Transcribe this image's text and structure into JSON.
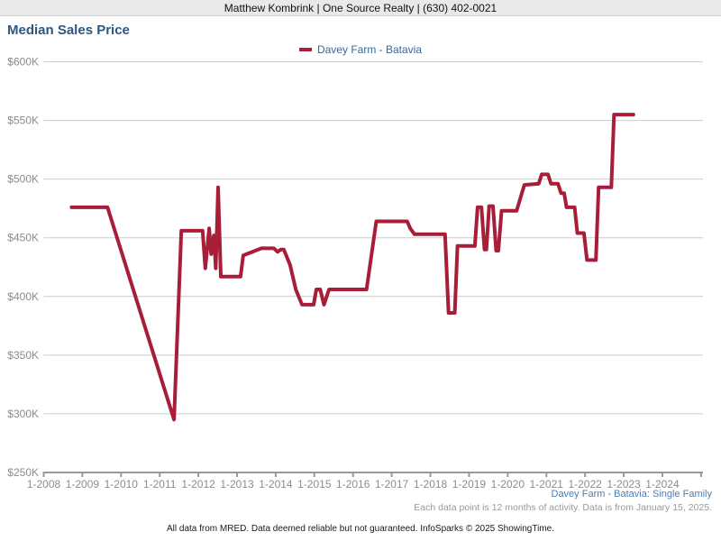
{
  "header": {
    "agent_info": "Matthew Kombrink | One Source Realty | (630) 402-0021"
  },
  "title": "Median Sales Price",
  "legend": {
    "label": "Davey Farm - Batavia"
  },
  "annotations": {
    "series_type": "Davey Farm - Batavia: Single Family",
    "data_note": "Each data point is 12 months of activity. Data is from January 15, 2025."
  },
  "footer": {
    "disclaimer": "All data from MRED. Data deemed reliable but not guaranteed. InfoSparks © 2025 ShowingTime."
  },
  "colors": {
    "accent": "#A81D37",
    "title_blue": "#2A5783",
    "legend_blue": "#35689C",
    "link_blue": "#4E7FB1",
    "grid": "#CCCCCC",
    "axis": "#999999",
    "tick_text": "#8C8C8C",
    "note_gray": "#999999",
    "header_bg": "#E9E9E9",
    "header_border": "#D4D4D4",
    "footer_text": "#1A1A1A"
  },
  "chart_data": {
    "type": "line",
    "title": "Median Sales Price",
    "xlabel": "",
    "ylabel": "",
    "units": "USD thousands",
    "grid": true,
    "legend_position": "top-center",
    "xlim": [
      2008,
      2025.05
    ],
    "ylim": [
      250,
      600
    ],
    "y_ticks": [
      {
        "value": 250,
        "label": "$250K"
      },
      {
        "value": 300,
        "label": "$300K"
      },
      {
        "value": 350,
        "label": "$350K"
      },
      {
        "value": 400,
        "label": "$400K"
      },
      {
        "value": 450,
        "label": "$450K"
      },
      {
        "value": 500,
        "label": "$500K"
      },
      {
        "value": 550,
        "label": "$550K"
      },
      {
        "value": 600,
        "label": "$600K"
      }
    ],
    "x_ticks": [
      {
        "value": 2008,
        "label": "1-2008"
      },
      {
        "value": 2009,
        "label": "1-2009"
      },
      {
        "value": 2010,
        "label": "1-2010"
      },
      {
        "value": 2011,
        "label": "1-2011"
      },
      {
        "value": 2012,
        "label": "1-2012"
      },
      {
        "value": 2013,
        "label": "1-2013"
      },
      {
        "value": 2014,
        "label": "1-2014"
      },
      {
        "value": 2015,
        "label": "1-2015"
      },
      {
        "value": 2016,
        "label": "1-2016"
      },
      {
        "value": 2017,
        "label": "1-2017"
      },
      {
        "value": 2018,
        "label": "1-2018"
      },
      {
        "value": 2019,
        "label": "1-2019"
      },
      {
        "value": 2020,
        "label": "1-2020"
      },
      {
        "value": 2021,
        "label": "1-2021"
      },
      {
        "value": 2022,
        "label": "1-2022"
      },
      {
        "value": 2023,
        "label": "1-2023"
      },
      {
        "value": 2024,
        "label": "1-2024"
      },
      {
        "value": 2025,
        "label": ""
      }
    ],
    "series": [
      {
        "name": "Davey Farm - Batavia",
        "color": "#A81D37",
        "points": [
          [
            2008.72,
            476
          ],
          [
            2009.65,
            476
          ],
          [
            2011.37,
            295
          ],
          [
            2011.56,
            456
          ],
          [
            2012.11,
            456
          ],
          [
            2012.18,
            424
          ],
          [
            2012.28,
            458
          ],
          [
            2012.33,
            436
          ],
          [
            2012.4,
            452
          ],
          [
            2012.45,
            424
          ],
          [
            2012.51,
            493
          ],
          [
            2012.58,
            417
          ],
          [
            2013.09,
            417
          ],
          [
            2013.16,
            435
          ],
          [
            2013.4,
            438
          ],
          [
            2013.63,
            441
          ],
          [
            2013.95,
            441
          ],
          [
            2014.05,
            438
          ],
          [
            2014.13,
            440
          ],
          [
            2014.21,
            440
          ],
          [
            2014.37,
            427
          ],
          [
            2014.52,
            406
          ],
          [
            2014.68,
            393
          ],
          [
            2014.98,
            393
          ],
          [
            2015.05,
            406
          ],
          [
            2015.15,
            406
          ],
          [
            2015.25,
            393
          ],
          [
            2015.38,
            406
          ],
          [
            2016.35,
            406
          ],
          [
            2016.6,
            464
          ],
          [
            2017.4,
            464
          ],
          [
            2017.48,
            458
          ],
          [
            2017.59,
            453
          ],
          [
            2018.38,
            453
          ],
          [
            2018.47,
            386
          ],
          [
            2018.63,
            386
          ],
          [
            2018.7,
            443
          ],
          [
            2019.15,
            443
          ],
          [
            2019.22,
            476
          ],
          [
            2019.32,
            476
          ],
          [
            2019.4,
            440
          ],
          [
            2019.45,
            440
          ],
          [
            2019.52,
            477
          ],
          [
            2019.62,
            477
          ],
          [
            2019.7,
            439
          ],
          [
            2019.76,
            439
          ],
          [
            2019.84,
            473
          ],
          [
            2020.23,
            473
          ],
          [
            2020.43,
            495
          ],
          [
            2020.8,
            496
          ],
          [
            2020.88,
            504
          ],
          [
            2021.04,
            504
          ],
          [
            2021.12,
            496
          ],
          [
            2021.3,
            496
          ],
          [
            2021.38,
            488
          ],
          [
            2021.46,
            488
          ],
          [
            2021.52,
            476
          ],
          [
            2021.73,
            476
          ],
          [
            2021.8,
            454
          ],
          [
            2021.97,
            454
          ],
          [
            2022.05,
            431
          ],
          [
            2022.28,
            431
          ],
          [
            2022.35,
            493
          ],
          [
            2022.68,
            493
          ],
          [
            2022.75,
            555
          ],
          [
            2023.25,
            555
          ]
        ]
      }
    ]
  }
}
